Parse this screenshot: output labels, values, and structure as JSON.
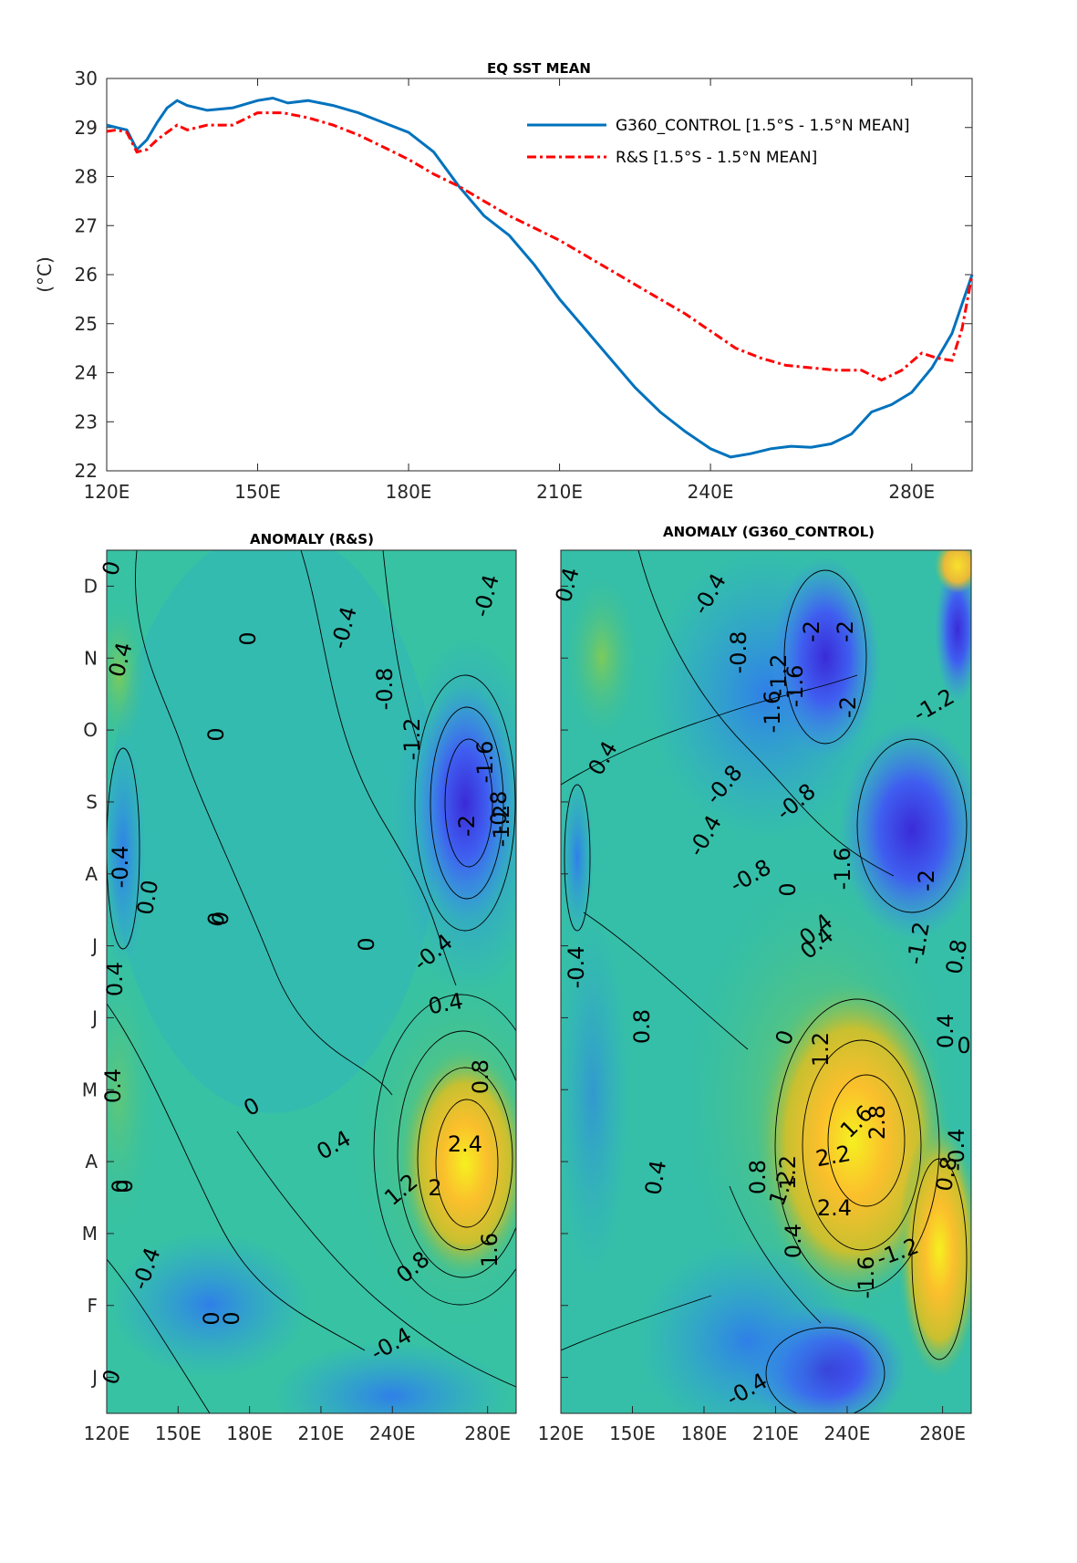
{
  "chart_data": [
    {
      "type": "line",
      "title": "EQ SST MEAN",
      "ylabel": "(°C)",
      "xlabel": "",
      "xlim": [
        120,
        292
      ],
      "ylim": [
        22,
        30
      ],
      "xticks": [
        120,
        150,
        180,
        210,
        240,
        280
      ],
      "xtick_labels": [
        "120E",
        "150E",
        "180E",
        "210E",
        "240E",
        "280E"
      ],
      "yticks": [
        22,
        23,
        24,
        25,
        26,
        27,
        28,
        29,
        30
      ],
      "legend": "top-right",
      "series": [
        {
          "name": "G360_CONTROL [1.5°S - 1.5°N MEAN]",
          "color": "#0072BD",
          "style": "solid",
          "x": [
            120,
            122,
            124,
            126,
            128,
            130,
            132,
            134,
            136,
            140,
            145,
            150,
            153,
            156,
            160,
            165,
            170,
            175,
            180,
            185,
            190,
            195,
            200,
            205,
            210,
            215,
            220,
            225,
            230,
            235,
            240,
            244,
            248,
            252,
            256,
            260,
            264,
            268,
            272,
            276,
            280,
            284,
            288,
            292
          ],
          "y": [
            29.05,
            29.0,
            28.95,
            28.55,
            28.75,
            29.1,
            29.4,
            29.55,
            29.45,
            29.35,
            29.4,
            29.55,
            29.6,
            29.5,
            29.55,
            29.45,
            29.3,
            29.1,
            28.9,
            28.5,
            27.8,
            27.2,
            26.8,
            26.2,
            25.5,
            24.9,
            24.3,
            23.7,
            23.2,
            22.8,
            22.45,
            22.28,
            22.35,
            22.45,
            22.5,
            22.48,
            22.55,
            22.75,
            23.2,
            23.35,
            23.6,
            24.1,
            24.8,
            26.0
          ]
        },
        {
          "name": "R&S [1.5°S - 1.5°N MEAN]",
          "color": "#FF0000",
          "style": "dashdot",
          "x": [
            120,
            122,
            124,
            126,
            128,
            130,
            132,
            134,
            136,
            140,
            145,
            150,
            155,
            160,
            165,
            170,
            175,
            180,
            185,
            190,
            195,
            200,
            205,
            210,
            215,
            220,
            225,
            230,
            235,
            240,
            245,
            250,
            255,
            260,
            265,
            270,
            274,
            278,
            282,
            285,
            288,
            290,
            292
          ],
          "y": [
            28.92,
            28.95,
            28.9,
            28.5,
            28.55,
            28.75,
            28.9,
            29.05,
            28.95,
            29.05,
            29.05,
            29.3,
            29.3,
            29.2,
            29.05,
            28.85,
            28.6,
            28.35,
            28.05,
            27.8,
            27.5,
            27.2,
            26.95,
            26.7,
            26.4,
            26.1,
            25.8,
            25.5,
            25.2,
            24.85,
            24.5,
            24.3,
            24.15,
            24.1,
            24.05,
            24.05,
            23.85,
            24.05,
            24.4,
            24.3,
            24.25,
            24.9,
            26.0
          ]
        }
      ]
    },
    {
      "type": "heatmap",
      "title": "ANOMALY (R&S)",
      "xtick_labels": [
        "120E",
        "150E",
        "180E",
        "210E",
        "240E",
        "280E"
      ],
      "xticks": [
        120,
        150,
        180,
        210,
        240,
        280
      ],
      "ytick_labels": [
        "J",
        "F",
        "M",
        "A",
        "M",
        "J",
        "J",
        "A",
        "S",
        "O",
        "N",
        "D"
      ],
      "contour_labels": [
        "0",
        "0.4",
        "0",
        "-0.4",
        "0",
        "0",
        "-0.4",
        "-0.8",
        "-1.2",
        "-1.6",
        "-2",
        "-1.2",
        "-0.8",
        "-0.4",
        "0",
        "0.4",
        "0.8",
        "2.4",
        "2",
        "1.2",
        "0.8",
        "1.6",
        "0.4",
        "0",
        "-0.4",
        "0",
        "0",
        "0",
        "-0.4",
        "0.4",
        "0",
        "-0.4",
        "0.0",
        "0",
        "0.4",
        "0"
      ],
      "grid": false
    },
    {
      "type": "heatmap",
      "title": "ANOMALY (G360_CONTROL)",
      "xtick_labels": [
        "120E",
        "150E",
        "180E",
        "210E",
        "240E",
        "280E"
      ],
      "xticks": [
        120,
        150,
        180,
        210,
        240,
        280
      ],
      "ytick_labels": [
        "J",
        "F",
        "M",
        "A",
        "M",
        "J",
        "J",
        "A",
        "S",
        "O",
        "N",
        "D"
      ],
      "contour_labels": [
        "0.4",
        "-0.4",
        "-0.8",
        "-2",
        "-2",
        "-1.2",
        "-1.6",
        "-2",
        "-1.6",
        "-0.8",
        "-1.2",
        "0.4",
        "-0.8",
        "-0.8",
        "-1.6",
        "-2",
        "-0.4",
        "0",
        "0.4",
        "-0.4",
        "-1.2",
        "0.4",
        "0.8",
        "1.2",
        "0",
        "0.4",
        "0.8",
        "2.8",
        "1.6",
        "2.2",
        "0.4",
        "1.2",
        "2.4",
        "0",
        "0.8",
        "0.4",
        "-1.2",
        "-1.6",
        "-0.4",
        "0.8",
        "1.2",
        "-0.4"
      ],
      "grid": false
    }
  ]
}
